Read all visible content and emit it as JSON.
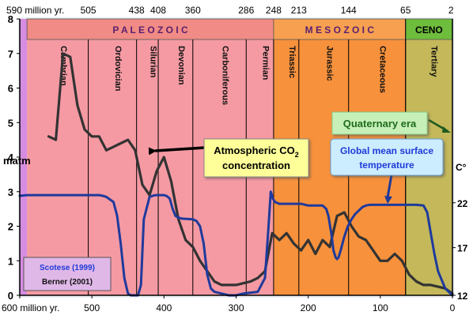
{
  "chart_data": {
    "type": "line",
    "colors": {
      "paleozoic_bg": "#f59aa3",
      "mesozoic_bg": "#f7913c",
      "cenozoic_bg": "#c4b85a",
      "paleozoic_band": "#f08b85",
      "mesozoic_band": "#f6a050",
      "cenozoic_band": "#6ebd3c",
      "pre_cambrian": "#d68ce0",
      "co2_line": "#333333",
      "temp_line": "#1f3a9c",
      "co2_label_bg": "#ffff99",
      "temp_label_bg": "#ccecff",
      "quaternary_bg": "#c6f0b8",
      "quaternary_text": "#1e6b1e",
      "temp_text": "#1f3ad8",
      "source_box_bg": "#e0b8e8"
    },
    "x_axis": {
      "reversed": true,
      "xlim": [
        600,
        0
      ],
      "bottom_ticks": [
        {
          "value": 600,
          "label": "600 million yr."
        },
        {
          "value": 500,
          "label": "500"
        },
        {
          "value": 400,
          "label": "400"
        },
        {
          "value": 300,
          "label": "300"
        },
        {
          "value": 200,
          "label": "200"
        },
        {
          "value": 100,
          "label": "100"
        },
        {
          "value": 0,
          "label": "0"
        }
      ],
      "top_ticks": [
        {
          "value": 590,
          "label": "590 million yr."
        },
        {
          "value": 505,
          "label": "505"
        },
        {
          "value": 438,
          "label": "438"
        },
        {
          "value": 408,
          "label": "408"
        },
        {
          "value": 360,
          "label": "360"
        },
        {
          "value": 286,
          "label": "286"
        },
        {
          "value": 248,
          "label": "248"
        },
        {
          "value": 213,
          "label": "213"
        },
        {
          "value": 144,
          "label": "144"
        },
        {
          "value": 65,
          "label": "65"
        },
        {
          "value": 2,
          "label": "2"
        }
      ]
    },
    "y_left": {
      "ylim": [
        0,
        8
      ],
      "ticks": [
        "0",
        "1",
        "2",
        "3",
        "4",
        "5",
        "6",
        "7",
        "8"
      ],
      "unit_label": "matm"
    },
    "y_right": {
      "unit_label": "C°",
      "ticks": [
        {
          "label": "22",
          "y": 2.68
        },
        {
          "label": "17",
          "y": 1.38
        },
        {
          "label": "12",
          "y": 0.0
        }
      ]
    },
    "eras": [
      {
        "name": "P A L E O Z O I C",
        "from": 590,
        "to": 248,
        "key": "paleozoic"
      },
      {
        "name": "M E S O Z O I C",
        "from": 248,
        "to": 65,
        "key": "mesozoic"
      },
      {
        "name": "CENO",
        "from": 65,
        "to": 0,
        "key": "cenozoic"
      }
    ],
    "periods": [
      {
        "name": "Cambrian",
        "from": 590,
        "to": 505
      },
      {
        "name": "Ordovician",
        "from": 505,
        "to": 438
      },
      {
        "name": "Silurian",
        "from": 438,
        "to": 408
      },
      {
        "name": "Devonian",
        "from": 408,
        "to": 360
      },
      {
        "name": "Carboniferous",
        "from": 360,
        "to": 286
      },
      {
        "name": "Permian",
        "from": 286,
        "to": 248
      },
      {
        "name": "Triassic",
        "from": 248,
        "to": 213
      },
      {
        "name": "Jurassic",
        "from": 213,
        "to": 144
      },
      {
        "name": "Cretaceous",
        "from": 144,
        "to": 65
      },
      {
        "name": "Tertiary",
        "from": 65,
        "to": 2
      }
    ],
    "series": [
      {
        "name": "Atmospheric CO2 concentration",
        "x": [
          560,
          550,
          540,
          530,
          520,
          510,
          500,
          490,
          480,
          470,
          460,
          450,
          440,
          430,
          420,
          410,
          400,
          390,
          380,
          370,
          360,
          350,
          340,
          330,
          320,
          310,
          300,
          290,
          280,
          270,
          260,
          250,
          240,
          230,
          220,
          210,
          200,
          190,
          180,
          170,
          160,
          150,
          140,
          130,
          120,
          110,
          100,
          90,
          80,
          70,
          60,
          50,
          40,
          30,
          20,
          10,
          0
        ],
        "values": [
          4.6,
          4.5,
          7.0,
          6.9,
          5.5,
          4.8,
          4.6,
          4.6,
          4.2,
          4.3,
          4.4,
          4.5,
          4.2,
          3.2,
          2.9,
          3.6,
          4.0,
          3.3,
          2.2,
          1.6,
          1.4,
          1.0,
          0.7,
          0.4,
          0.3,
          0.3,
          0.3,
          0.35,
          0.4,
          0.5,
          0.7,
          1.8,
          1.6,
          1.8,
          1.5,
          1.3,
          1.6,
          1.2,
          1.6,
          1.4,
          2.3,
          2.4,
          2.0,
          1.7,
          1.6,
          1.3,
          1.0,
          1.0,
          1.2,
          1.0,
          0.6,
          0.4,
          0.3,
          0.3,
          0.25,
          0.2,
          0.05
        ]
      },
      {
        "name": "Global mean surface temperature",
        "x": [
          600,
          590,
          580,
          570,
          560,
          550,
          540,
          530,
          520,
          510,
          500,
          495,
          490,
          485,
          480,
          470,
          465,
          460,
          455,
          450,
          446,
          443,
          440,
          436,
          432,
          428,
          420,
          412,
          405,
          400,
          396,
          392,
          388,
          384,
          380,
          375,
          360,
          355,
          350,
          345,
          340,
          335,
          330,
          320,
          310,
          300,
          290,
          270,
          260,
          255,
          252,
          249,
          246,
          240,
          230,
          220,
          210,
          200,
          190,
          180,
          175,
          172,
          168,
          165,
          162,
          160,
          158,
          155,
          150,
          145,
          140,
          135,
          130,
          125,
          120,
          115,
          110,
          100,
          90,
          80,
          70,
          60,
          50,
          40,
          35,
          30,
          25,
          20,
          10,
          0
        ],
        "values": [
          2.88,
          2.9,
          2.9,
          2.9,
          2.9,
          2.9,
          2.9,
          2.9,
          2.9,
          2.9,
          2.9,
          2.9,
          2.9,
          2.88,
          2.85,
          2.7,
          2.3,
          1.5,
          0.5,
          0.05,
          0.0,
          0.0,
          0.0,
          0.0,
          0.3,
          2.2,
          2.85,
          2.9,
          2.9,
          2.9,
          2.87,
          2.8,
          2.5,
          2.3,
          2.25,
          2.22,
          2.2,
          2.15,
          2.0,
          1.5,
          0.6,
          0.2,
          0.1,
          0.05,
          0.0,
          0.0,
          0.05,
          0.1,
          0.5,
          2.0,
          3.0,
          2.8,
          2.7,
          2.65,
          2.65,
          2.65,
          2.65,
          2.6,
          2.6,
          2.6,
          2.5,
          2.3,
          1.8,
          1.3,
          1.1,
          1.05,
          1.1,
          1.3,
          1.7,
          2.0,
          2.2,
          2.35,
          2.45,
          2.55,
          2.6,
          2.62,
          2.62,
          2.62,
          2.62,
          2.62,
          2.62,
          2.62,
          2.62,
          2.6,
          2.4,
          1.8,
          1.2,
          0.7,
          0.2,
          0.0
        ]
      }
    ],
    "annotations": {
      "co2_label_line1": "Atmospheric CO",
      "co2_label_sub": "2",
      "co2_label_line2": "concentration",
      "temp_label_line1": "Global mean surface",
      "temp_label_line2": "temperature",
      "quaternary_label": "Quaternary era",
      "source_1": "Scotese (1999)",
      "source_2": "Berner (2001)"
    }
  }
}
